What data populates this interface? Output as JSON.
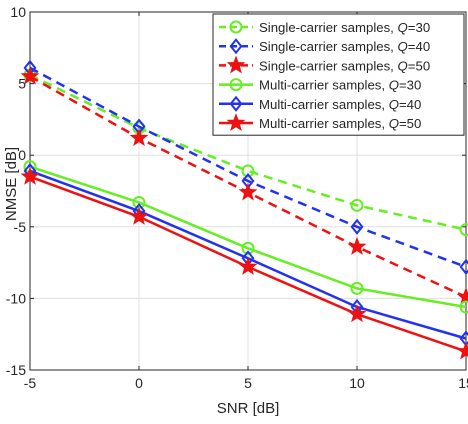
{
  "chart_data": {
    "type": "line",
    "xlabel": "SNR [dB]",
    "ylabel": "NMSE [dB]",
    "xlim": [
      -5,
      15
    ],
    "ylim": [
      -15,
      10
    ],
    "xticks": [
      -5,
      0,
      5,
      10,
      15
    ],
    "yticks": [
      -15,
      -10,
      -5,
      0,
      5,
      10
    ],
    "grid": true,
    "legend_position": "top-right",
    "x": [
      -5,
      0,
      5,
      10,
      15
    ],
    "series": [
      {
        "name": "Single-carrier samples, Q=30",
        "name_prefix": "Single-carrier samples, ",
        "name_var": "Q",
        "name_suffix": "=30",
        "color": "#66ee22",
        "dash": "dashed",
        "marker": "circle",
        "values": [
          5.6,
          1.9,
          -1.1,
          -3.5,
          -5.2
        ]
      },
      {
        "name": "Single-carrier samples, Q=40",
        "name_prefix": "Single-carrier samples, ",
        "name_var": "Q",
        "name_suffix": "=40",
        "color": "#2233ee",
        "dash": "dashed",
        "marker": "diamond",
        "values": [
          6.1,
          2.0,
          -1.8,
          -5.0,
          -7.8
        ]
      },
      {
        "name": "Single-carrier samples, Q=50",
        "name_prefix": "Single-carrier samples, ",
        "name_var": "Q",
        "name_suffix": "=50",
        "color": "#ee1111",
        "dash": "dashed",
        "marker": "star",
        "values": [
          5.5,
          1.2,
          -2.6,
          -6.4,
          -9.9
        ]
      },
      {
        "name": "Multi-carrier samples, Q=30",
        "name_prefix": "Multi-carrier samples, ",
        "name_var": "Q",
        "name_suffix": "=30",
        "color": "#66ee22",
        "dash": "solid",
        "marker": "circle",
        "values": [
          -0.8,
          -3.3,
          -6.5,
          -9.3,
          -10.6
        ]
      },
      {
        "name": "Multi-carrier samples, Q=40",
        "name_prefix": "Multi-carrier samples, ",
        "name_var": "Q",
        "name_suffix": "=40",
        "color": "#2233ee",
        "dash": "solid",
        "marker": "diamond",
        "values": [
          -1.1,
          -3.9,
          -7.2,
          -10.6,
          -12.8
        ]
      },
      {
        "name": "Multi-carrier samples, Q=50",
        "name_prefix": "Multi-carrier samples, ",
        "name_var": "Q",
        "name_suffix": "=50",
        "color": "#ee1111",
        "dash": "solid",
        "marker": "star",
        "values": [
          -1.5,
          -4.3,
          -7.8,
          -11.1,
          -13.7
        ]
      }
    ]
  }
}
